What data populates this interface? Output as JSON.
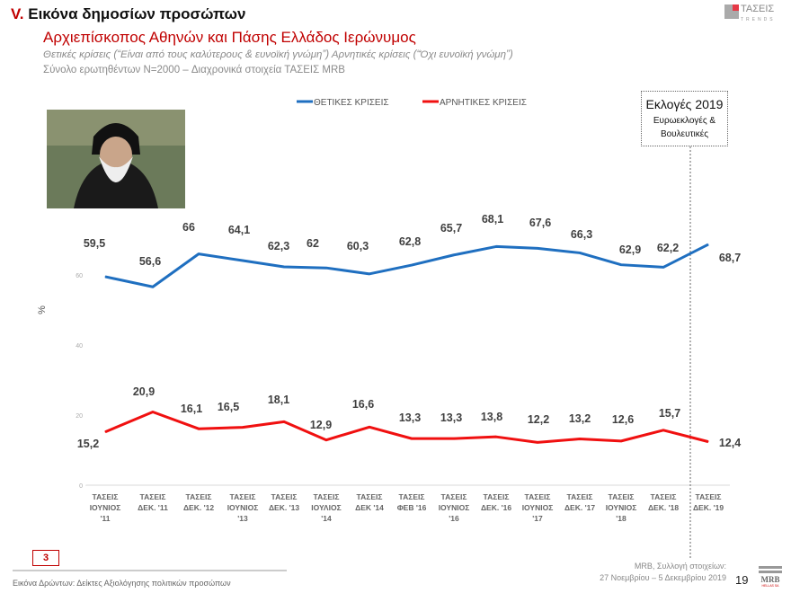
{
  "header": {
    "section_number": "V.",
    "section_title": "Εικόνα δημοσίων προσώπων",
    "subtitle": "Αρχιεπίσκοπος Αθηνών και Πάσης Ελλάδος Ιερώνυμος",
    "description": "Θετικές κρίσεις (“Είναι από τους καλύτερους & ευνοϊκή γνώμη”) Αρνητικές κρίσεις (“Όχι ευνοϊκή γνώμη”)",
    "sample": "Σύνολο ερωτηθέντων N=2000 – Διαχρονικά στοιχεία ΤΑΣΕΙΣ MRB",
    "logo_text": "ΤΑΣΕΙΣ",
    "logo_sub": "TRENDS"
  },
  "annotation": {
    "title": "Εκλογές 2019",
    "line1": "Ευρωεκλογές &",
    "line2": "Βουλευτικές"
  },
  "footer": {
    "left": "Εικόνα Δρώντων: Δείκτες Αξιολόγησης πολιτικών προσώπων",
    "right1": "MRB, Συλλογή στοιχείων:",
    "right2": "27 Νοεμβρίου – 5 Δεκεμβρίου 2019",
    "page": "19",
    "badge": "3",
    "mrb_logo": "MRB",
    "mrb_sub": "HELLAS SA"
  },
  "chart_data": {
    "type": "line",
    "ylabel": "%",
    "ylim": [
      0,
      80
    ],
    "yticks": [
      0,
      20,
      40,
      60
    ],
    "grid": false,
    "legend": "top",
    "categories": [
      [
        "ΤΑΣΕΙΣ",
        "ΙΟΥΝΙΟΣ",
        "'11"
      ],
      [
        "ΤΑΣΕΙΣ",
        "ΔΕΚ. '11"
      ],
      [
        "ΤΑΣΕΙΣ",
        "ΔΕΚ. '12"
      ],
      [
        "ΤΑΣΕΙΣ",
        "ΙΟΥΝΙΟΣ",
        "'13"
      ],
      [
        "ΤΑΣΕΙΣ",
        "ΔΕΚ. '13"
      ],
      [
        "ΤΑΣΕΙΣ",
        "ΙΟΥΛΙΟΣ",
        "'14"
      ],
      [
        "ΤΑΣΕΙΣ",
        "ΔΕΚ '14"
      ],
      [
        "ΤΑΣΕΙΣ",
        "ΦΕΒ '16"
      ],
      [
        "ΤΑΣΕΙΣ",
        "ΙΟΥΝΙΟΣ",
        "'16"
      ],
      [
        "ΤΑΣΕΙΣ",
        "ΔΕΚ. '16"
      ],
      [
        "ΤΑΣΕΙΣ",
        "ΙΟΥΝΙΟΣ",
        "'17"
      ],
      [
        "ΤΑΣΕΙΣ",
        "ΔΕΚ. '17"
      ],
      [
        "ΤΑΣΕΙΣ",
        "ΙΟΥΝΙΟΣ",
        "'18"
      ],
      [
        "ΤΑΣΕΙΣ",
        "ΔΕΚ. '18"
      ],
      [
        "ΤΑΣΕΙΣ",
        "ΔΕΚ. '19"
      ]
    ],
    "series": [
      {
        "name": "ΘΕΤΙΚΕΣ ΚΡΙΣΕΙΣ",
        "color": "#1f6fc0",
        "values": [
          59.5,
          56.6,
          66,
          64.1,
          62.3,
          62,
          60.3,
          62.8,
          65.7,
          68.1,
          67.6,
          66.3,
          62.9,
          62.2,
          68.7
        ],
        "labels": [
          "59,5",
          "56,6",
          "66",
          "64,1",
          "62,3",
          "62",
          "60,3",
          "62,8",
          "65,7",
          "68,1",
          "67,6",
          "66,3",
          "62,9",
          "62,2",
          "68,7"
        ]
      },
      {
        "name": "ΑΡΝΗΤΙΚΕΣ ΚΡΙΣΕΙΣ",
        "color": "#f01010",
        "values": [
          15.2,
          20.9,
          16.1,
          16.5,
          18.1,
          12.9,
          16.6,
          13.3,
          13.3,
          13.8,
          12.2,
          13.2,
          12.6,
          15.7,
          12.4
        ],
        "labels": [
          "15,2",
          "20,9",
          "16,1",
          "16,5",
          "18,1",
          "12,9",
          "16,6",
          "13,3",
          "13,3",
          "13,8",
          "12,2",
          "13,2",
          "12,6",
          "15,7",
          "12,4"
        ]
      }
    ]
  }
}
